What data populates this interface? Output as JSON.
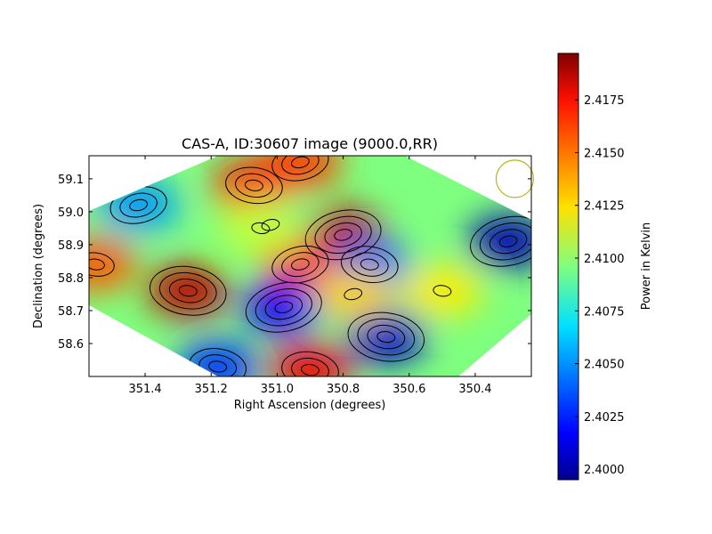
{
  "chart_data": {
    "type": "heatmap",
    "title": "CAS-A, ID:30607 image (9000.0,RR)",
    "xlabel": "Right Ascension (degrees)",
    "ylabel": "Declination (degrees)",
    "colorbar_label": "Power in Kelvin",
    "xlim": [
      351.57,
      350.23
    ],
    "ylim": [
      58.5,
      59.17
    ],
    "x_ticks": [
      351.4,
      351.2,
      351.0,
      350.8,
      350.6,
      350.4
    ],
    "x_tick_labels": [
      "351.4",
      "351.2",
      "351.0",
      "350.8",
      "350.6",
      "350.4"
    ],
    "y_ticks": [
      58.6,
      58.7,
      58.8,
      58.9,
      59.0,
      59.1
    ],
    "y_tick_labels": [
      "58.6",
      "58.7",
      "58.8",
      "58.9",
      "59.0",
      "59.1"
    ],
    "colorbar_range": [
      2.3995,
      2.4197
    ],
    "colorbar_ticks": [
      2.4,
      2.4025,
      2.405,
      2.4075,
      2.41,
      2.4125,
      2.415,
      2.4175
    ],
    "colorbar_tick_labels": [
      "2.4000",
      "2.4025",
      "2.4050",
      "2.4075",
      "2.4100",
      "2.4125",
      "2.4150",
      "2.4175"
    ],
    "colormap": "jet",
    "beam_circle": {
      "ra": 350.28,
      "dec": 59.1,
      "color": "#b5b520"
    },
    "features": [
      {
        "ra": 351.27,
        "dec": 58.76,
        "value": 2.4185
      },
      {
        "ra": 350.8,
        "dec": 58.93,
        "value": 2.4185
      },
      {
        "ra": 351.07,
        "dec": 59.08,
        "value": 2.417
      },
      {
        "ra": 350.93,
        "dec": 59.15,
        "value": 2.416
      },
      {
        "ra": 350.9,
        "dec": 58.52,
        "value": 2.4175
      },
      {
        "ra": 350.93,
        "dec": 58.84,
        "value": 2.4165
      },
      {
        "ra": 351.55,
        "dec": 58.84,
        "value": 2.4155
      },
      {
        "ra": 351.02,
        "dec": 58.96,
        "value": 2.409
      },
      {
        "ra": 350.72,
        "dec": 58.84,
        "value": 2.404
      },
      {
        "ra": 350.3,
        "dec": 58.91,
        "value": 2.4005
      },
      {
        "ra": 350.67,
        "dec": 58.62,
        "value": 2.401
      },
      {
        "ra": 350.98,
        "dec": 58.71,
        "value": 2.402
      },
      {
        "ra": 351.18,
        "dec": 58.53,
        "value": 2.403
      },
      {
        "ra": 351.42,
        "dec": 59.02,
        "value": 2.405
      },
      {
        "ra": 350.5,
        "dec": 58.76,
        "value": 2.4125
      },
      {
        "ra": 350.77,
        "dec": 58.75,
        "value": 2.413
      },
      {
        "ra": 351.05,
        "dec": 58.95,
        "value": 2.411
      }
    ]
  }
}
